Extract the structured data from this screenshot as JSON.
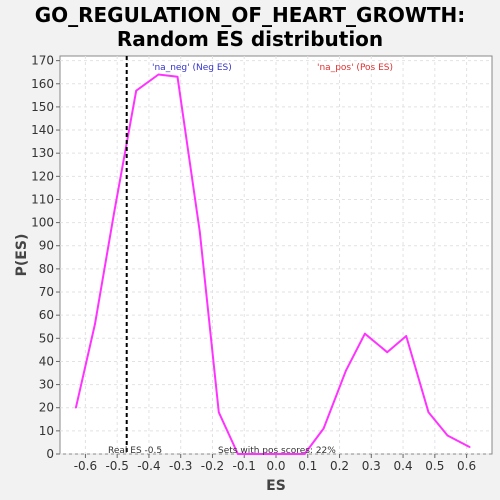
{
  "chart_data": {
    "type": "line",
    "title_line1": "GO_REGULATION_OF_HEART_GROWTH:",
    "title_line2": "Random ES distribution",
    "xlabel": "ES",
    "ylabel": "P(ES)",
    "xlim": [
      -0.68,
      0.68
    ],
    "ylim": [
      0,
      172
    ],
    "xticks": [
      -0.6,
      -0.5,
      -0.4,
      -0.3,
      -0.2,
      -0.1,
      0.0,
      0.1,
      0.2,
      0.3,
      0.4,
      0.5,
      0.6
    ],
    "xtick_labels": [
      "-0.6",
      "-0.5",
      "-0.4",
      "-0.3",
      "-0.2",
      "-0.1",
      "0.0",
      "0.1",
      "0.2",
      "0.3",
      "0.4",
      "0.5",
      "0.6"
    ],
    "yticks": [
      0,
      10,
      20,
      30,
      40,
      50,
      60,
      70,
      80,
      90,
      100,
      110,
      120,
      130,
      140,
      150,
      160,
      170
    ],
    "ytick_labels": [
      "0",
      "10",
      "20",
      "30",
      "40",
      "50",
      "60",
      "70",
      "80",
      "90",
      "100",
      "110",
      "120",
      "130",
      "140",
      "150",
      "160",
      "170"
    ],
    "grid": true,
    "series": [
      {
        "color": "#ff33ff",
        "x": [
          -0.63,
          -0.57,
          -0.51,
          -0.44,
          -0.37,
          -0.31,
          -0.24,
          -0.18,
          -0.12,
          -0.05,
          0.02,
          0.09,
          0.15,
          0.22,
          0.28,
          0.35,
          0.41,
          0.48,
          0.54,
          0.61
        ],
        "y": [
          20,
          56,
          104,
          157,
          164,
          163,
          96,
          18,
          0,
          0,
          0,
          0,
          11,
          36,
          52,
          44,
          51,
          18,
          8,
          3
        ]
      }
    ],
    "real_es": -0.47,
    "legend_neg": "'na_neg' (Neg ES)",
    "legend_pos": "'na_pos' (Pos ES)",
    "legend_neg_color": "#3333cc",
    "legend_pos_color": "#e03030",
    "annotation_real_es": "Real ES -0.5",
    "annotation_pos_scores": "Sets with pos scores: 22%"
  }
}
